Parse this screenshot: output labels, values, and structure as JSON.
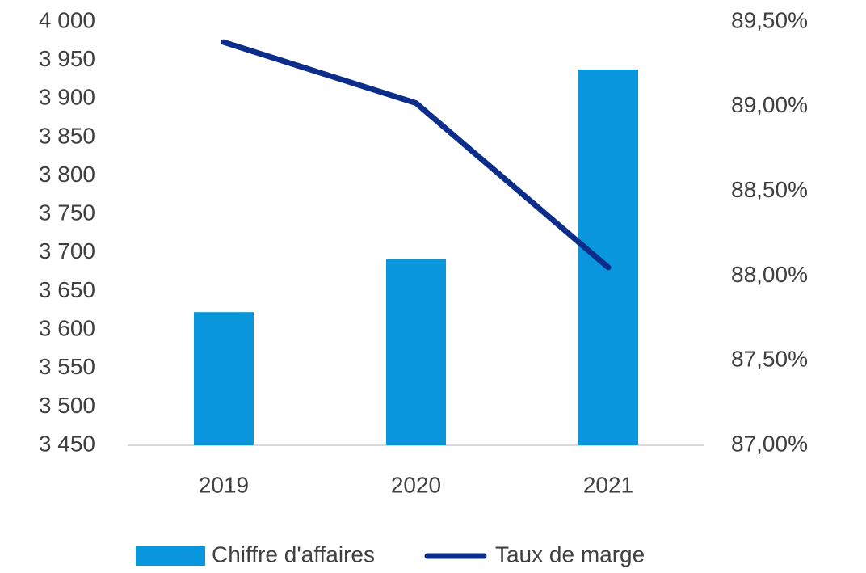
{
  "chart_data": {
    "type": "bar",
    "categories": [
      "2019",
      "2020",
      "2021"
    ],
    "series": [
      {
        "name": "Chiffre d'affaires",
        "type": "bar",
        "color": "#0a96dc",
        "values": [
          3623,
          3692,
          3938
        ]
      },
      {
        "name": "Taux de marge",
        "type": "line",
        "color": "#0c2e8a",
        "axis": "y2",
        "values": [
          89.38,
          89.02,
          88.05
        ]
      }
    ],
    "ylim": [
      3450,
      4000
    ],
    "yticks": [
      {
        "value": 3450,
        "label": "3 450"
      },
      {
        "value": 3500,
        "label": "3 500"
      },
      {
        "value": 3550,
        "label": "3 550"
      },
      {
        "value": 3600,
        "label": "3 600"
      },
      {
        "value": 3650,
        "label": "3 650"
      },
      {
        "value": 3700,
        "label": "3 700"
      },
      {
        "value": 3750,
        "label": "3 750"
      },
      {
        "value": 3800,
        "label": "3 800"
      },
      {
        "value": 3850,
        "label": "3 850"
      },
      {
        "value": 3900,
        "label": "3 900"
      },
      {
        "value": 3950,
        "label": "3 950"
      },
      {
        "value": 4000,
        "label": "4 000"
      }
    ],
    "y2lim": [
      87,
      89.5
    ],
    "y2ticks": [
      {
        "value": 87,
        "label": "87,00%"
      },
      {
        "value": 87.5,
        "label": "87,50%"
      },
      {
        "value": 88,
        "label": "88,00%"
      },
      {
        "value": 88.5,
        "label": "88,50%"
      },
      {
        "value": 89,
        "label": "89,00%"
      },
      {
        "value": 89.5,
        "label": "89,50%"
      }
    ],
    "legend": "bottom"
  }
}
